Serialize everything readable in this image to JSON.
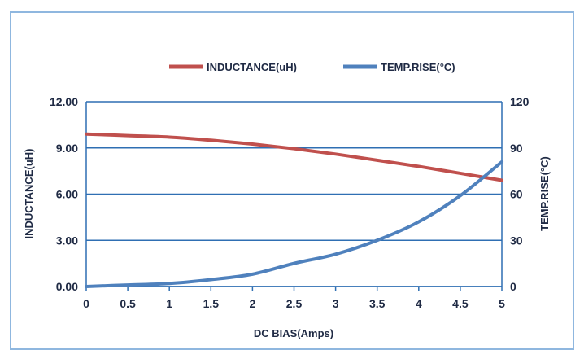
{
  "chart_data": {
    "type": "line",
    "xlabel": "DC BIAS(Amps)",
    "ylabel_left": "INDUCTANCE(uH)",
    "ylabel_right": "TEMP.RISE(°C)",
    "x": [
      0,
      0.5,
      1,
      1.5,
      2,
      2.5,
      3,
      3.5,
      4,
      4.5,
      5
    ],
    "x_tick_labels": [
      "0",
      "0.5",
      "1",
      "1.5",
      "2",
      "2.5",
      "3",
      "3.5",
      "4",
      "4.5",
      "5"
    ],
    "xlim": [
      0,
      5
    ],
    "ylim_left": [
      0,
      12
    ],
    "ylim_right": [
      0,
      120
    ],
    "y_left_tick_labels": [
      "0.00",
      "3.00",
      "6.00",
      "9.00",
      "12.00"
    ],
    "y_right_tick_labels": [
      "0",
      "30",
      "60",
      "90",
      "120"
    ],
    "series": [
      {
        "name": "INDUCTANCE(uH)",
        "axis": "left",
        "color": "#c0504d",
        "values": [
          9.9,
          9.8,
          9.7,
          9.5,
          9.25,
          8.95,
          8.6,
          8.2,
          7.8,
          7.35,
          6.9
        ]
      },
      {
        "name": "TEMP.RISE(°C)",
        "axis": "right",
        "color": "#4f81bd",
        "values": [
          0,
          1,
          2,
          4.5,
          8,
          15,
          21,
          30,
          42,
          59,
          81
        ]
      }
    ],
    "grid": "horizontal",
    "legend_position": "top"
  }
}
